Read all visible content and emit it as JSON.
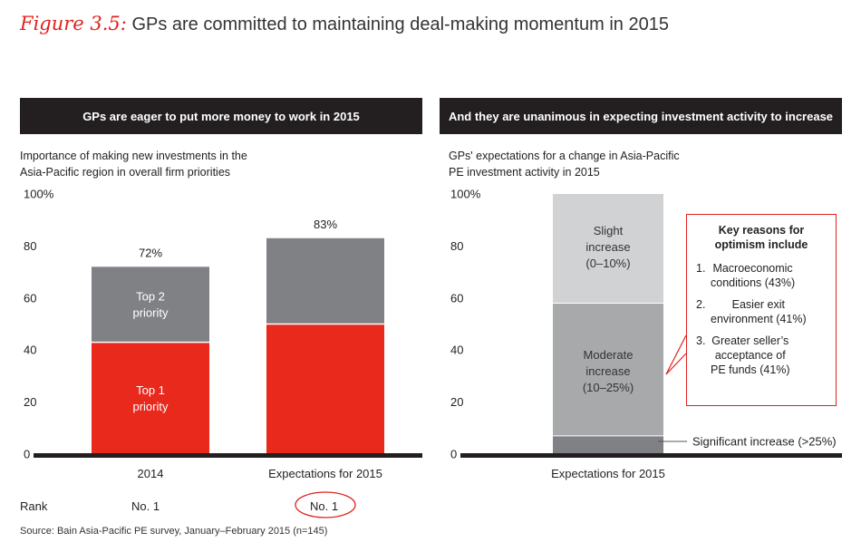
{
  "figure": {
    "label": "Figure 3.5:",
    "title": "GPs are committed to maintaining deal-making momentum in 2015"
  },
  "colors": {
    "red": "#e8291c",
    "dark_grey": "#808184",
    "mid_grey": "#a7a9ab",
    "light_grey": "#d1d2d4",
    "black": "#231f20"
  },
  "chart_data": [
    {
      "type": "bar",
      "header": "GPs are eager to put more money to work in 2015",
      "subtitle": [
        "Importance of making new investments in the",
        "Asia-Pacific region in overall firm priorities"
      ],
      "stacked": true,
      "categories": [
        "2014",
        "Expectations for 2015"
      ],
      "series": [
        {
          "name": "Top 1 priority",
          "values": [
            43,
            50
          ]
        },
        {
          "name": "Top 2 priority",
          "values": [
            29,
            33
          ]
        }
      ],
      "totals": [
        "72%",
        "83%"
      ],
      "ylim": [
        0,
        100
      ],
      "yticks": [
        "0",
        "20",
        "40",
        "60",
        "80",
        "100%"
      ],
      "segment_labels": {
        "top1": [
          "Top 1",
          "priority"
        ],
        "top2": [
          "Top 2",
          "priority"
        ]
      },
      "rank": {
        "label": "Rank",
        "values": [
          "No. 1",
          "No. 1"
        ]
      }
    },
    {
      "type": "bar",
      "header": "And they are unanimous in expecting investment activity to increase",
      "subtitle": [
        "GPs' expectations for a change in Asia-Pacific",
        "PE investment activity in 2015"
      ],
      "stacked": true,
      "categories": [
        "Expectations for 2015"
      ],
      "series": [
        {
          "name": "Significant increase (>25%)",
          "values": [
            7
          ]
        },
        {
          "name": "Moderate increase (10–25%)",
          "values": [
            51
          ]
        },
        {
          "name": "Slight increase (0–10%)",
          "values": [
            42
          ]
        }
      ],
      "ylim": [
        0,
        100
      ],
      "yticks": [
        "0",
        "20",
        "40",
        "60",
        "80",
        "100%"
      ],
      "segment_labels": {
        "slight": [
          "Slight",
          "increase",
          "(0–10%)"
        ],
        "moderate": [
          "Moderate",
          "increase",
          "(10–25%)"
        ],
        "significant": "Significant increase (>25%)"
      },
      "callout": {
        "title": [
          "Key reasons for",
          "optimism include"
        ],
        "items": [
          {
            "num": "1.",
            "lines": [
              "Macroeconomic",
              "conditions (43%)"
            ]
          },
          {
            "num": "2.",
            "lines": [
              "Easier exit",
              "environment (41%)"
            ]
          },
          {
            "num": "3.",
            "lines": [
              "Greater seller’s",
              "acceptance of",
              "PE funds (41%)"
            ]
          }
        ]
      }
    }
  ],
  "source": "Source: Bain Asia-Pacific PE survey, January–February 2015 (n=145)"
}
